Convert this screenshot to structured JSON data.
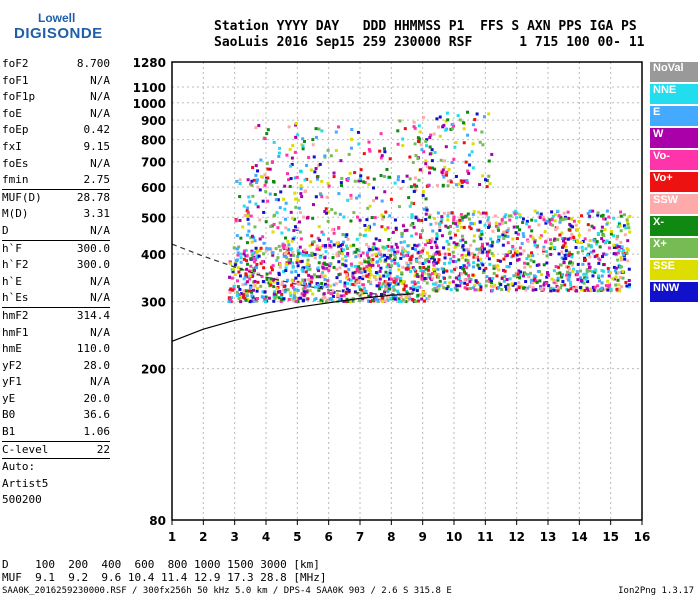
{
  "logo": {
    "line1": "Lowell",
    "line2": "DIGISONDE"
  },
  "header": {
    "row1": "Station YYYY DAY   DDD HHMMSS P1  FFS S AXN PPS IGA PS",
    "row2": "SaoLuis 2016 Sep15 259 230000 RSF      1 715 100 00- 11"
  },
  "params": [
    {
      "k": "foF2",
      "v": "8.700"
    },
    {
      "k": "foF1",
      "v": "N/A"
    },
    {
      "k": "foF1p",
      "v": "N/A"
    },
    {
      "k": "foE",
      "v": "N/A"
    },
    {
      "k": "foEp",
      "v": "0.42"
    },
    {
      "k": "fxI",
      "v": "9.15"
    },
    {
      "k": "foEs",
      "v": "N/A"
    },
    {
      "k": "fmin",
      "v": "2.75"
    },
    {
      "k": "MUF(D)",
      "v": "28.78",
      "sep": true
    },
    {
      "k": "M(D)",
      "v": "3.31"
    },
    {
      "k": "D",
      "v": "N/A"
    },
    {
      "k": "h`F",
      "v": "300.0",
      "sep": true
    },
    {
      "k": "h`F2",
      "v": "300.0"
    },
    {
      "k": "h`E",
      "v": "N/A"
    },
    {
      "k": "h`Es",
      "v": "N/A"
    },
    {
      "k": "hmF2",
      "v": "314.4",
      "sep": true
    },
    {
      "k": "hmF1",
      "v": "N/A"
    },
    {
      "k": "hmE",
      "v": "110.0"
    },
    {
      "k": "yF2",
      "v": "28.0"
    },
    {
      "k": "yF1",
      "v": "N/A"
    },
    {
      "k": "yE",
      "v": "20.0"
    },
    {
      "k": "B0",
      "v": "36.6"
    },
    {
      "k": "B1",
      "v": "1.06"
    },
    {
      "k": "C-level",
      "v": "22",
      "sep": true
    },
    {
      "k": "Auto:",
      "v": "",
      "sep": true
    },
    {
      "k": "Artist5",
      "v": ""
    },
    {
      "k": "500200",
      "v": ""
    }
  ],
  "legend": [
    {
      "label": "NoVal",
      "color": "#999999"
    },
    {
      "label": "NNE",
      "color": "#22ddee"
    },
    {
      "label": "E",
      "color": "#44aaff"
    },
    {
      "label": "W",
      "color": "#aa00aa"
    },
    {
      "label": "Vo-",
      "color": "#ff33aa"
    },
    {
      "label": "Vo+",
      "color": "#ee1111"
    },
    {
      "label": "SSW",
      "color": "#ffaaaa"
    },
    {
      "label": "X-",
      "color": "#118811"
    },
    {
      "label": "X+",
      "color": "#77bb55"
    },
    {
      "label": "SSE",
      "color": "#dddd00"
    },
    {
      "label": "NNW",
      "color": "#1111cc"
    }
  ],
  "dmuf": {
    "d_row": "D    100  200  400  600  800 1000 1500 3000 [km]",
    "muf_row": "MUF  9.1  9.2  9.6 10.4 11.4 12.9 17.3 28.8 [MHz]"
  },
  "footer": {
    "left": "SAA0K_2016259230000.RSF / 300fx256h 50 kHz 5.0 km / DPS-4 SAA0K 903 / 2.6 S 315.8 E",
    "right": "Ion2Png 1.3.17"
  },
  "chart_data": {
    "type": "scatter",
    "title": "",
    "xlabel": "",
    "ylabel": "",
    "xlim": [
      1,
      16
    ],
    "ylim": [
      80,
      1280
    ],
    "x_ticks": [
      1,
      2,
      3,
      4,
      5,
      6,
      7,
      8,
      9,
      10,
      11,
      12,
      13,
      14,
      15,
      16
    ],
    "y_ticks": [
      80,
      200,
      300,
      400,
      500,
      600,
      700,
      800,
      900,
      1000,
      1100,
      1280
    ],
    "grid": true,
    "scale": "semi-log virtual height axis",
    "echo_clusters": [
      {
        "name": "F-trace",
        "x_range": [
          2.8,
          9.2
        ],
        "y_range": [
          300,
          420
        ],
        "density": "high"
      },
      {
        "name": "F-spread",
        "x_range": [
          9.2,
          15.6
        ],
        "y_range": [
          320,
          520
        ],
        "density": "high"
      },
      {
        "name": "F-upper",
        "x_range": [
          3.0,
          9.2
        ],
        "y_range": [
          420,
          640
        ],
        "density": "medium"
      },
      {
        "name": "2F-echo",
        "x_range": [
          3.5,
          9.2
        ],
        "y_range": [
          630,
          900
        ],
        "density": "low"
      },
      {
        "name": "spikes",
        "x_range": [
          8.7,
          11.2
        ],
        "y_range": [
          600,
          950
        ],
        "density": "low"
      }
    ],
    "profile_curve": {
      "x": [
        1.0,
        2.0,
        3.0,
        4.0,
        5.0,
        6.0,
        7.0,
        8.0,
        8.7
      ],
      "y": [
        236,
        254,
        268,
        280,
        290,
        298,
        306,
        312,
        314.4
      ]
    },
    "trace_curve": {
      "x": [
        1.0,
        2.0,
        3.0,
        4.0,
        5.0,
        6.0,
        7.0,
        8.0,
        8.7
      ],
      "y": [
        425,
        395,
        370,
        348,
        333,
        322,
        316,
        313,
        314.4
      ]
    }
  }
}
